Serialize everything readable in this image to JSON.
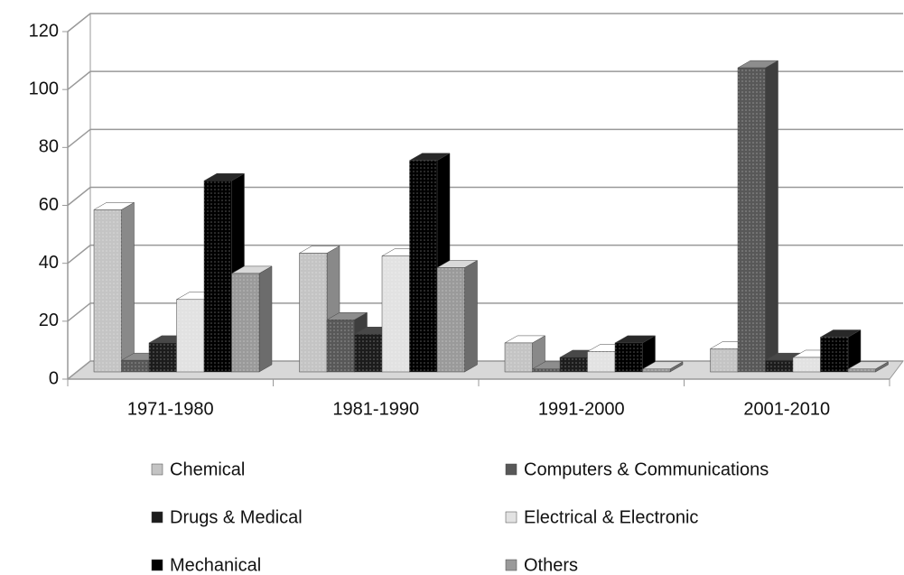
{
  "chart_data": {
    "type": "bar3d",
    "categories": [
      "1971-1980",
      "1981-1990",
      "1991-2000",
      "2001-2010"
    ],
    "series": [
      {
        "name": "Chemical",
        "color": "#c4c4c4",
        "values": [
          56,
          41,
          10,
          8
        ]
      },
      {
        "name": "Computers & Communications",
        "color": "#585858",
        "values": [
          4,
          18,
          1,
          105
        ]
      },
      {
        "name": "Drugs & Medical",
        "color": "#1c1c1c",
        "values": [
          10,
          13,
          5,
          4
        ]
      },
      {
        "name": "Electrical & Electronic",
        "color": "#e2e2e2",
        "values": [
          25,
          40,
          7,
          5
        ]
      },
      {
        "name": "Mechanical",
        "color": "#000000",
        "values": [
          66,
          73,
          10,
          12
        ]
      },
      {
        "name": "Others",
        "color": "#9a9a9a",
        "values": [
          34,
          36,
          1,
          1
        ]
      }
    ],
    "ylim": [
      0,
      120
    ],
    "yticks": [
      0,
      20,
      40,
      60,
      80,
      100,
      120
    ],
    "grid": true
  }
}
